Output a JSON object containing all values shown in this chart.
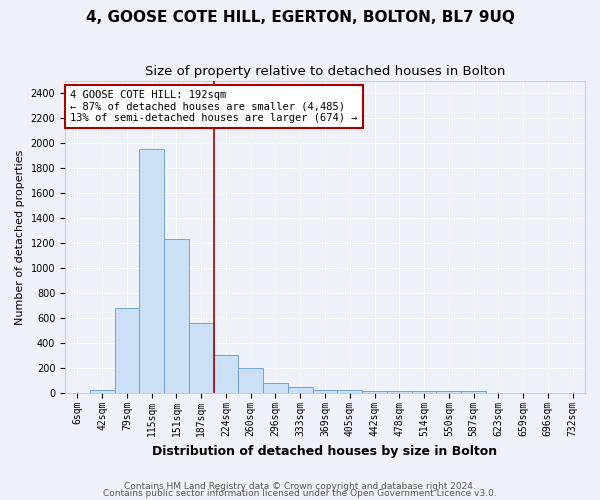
{
  "title": "4, GOOSE COTE HILL, EGERTON, BOLTON, BL7 9UQ",
  "subtitle": "Size of property relative to detached houses in Bolton",
  "xlabel": "Distribution of detached houses by size in Bolton",
  "ylabel": "Number of detached properties",
  "bar_color": "#cce0f5",
  "bar_edge_color": "#6699cc",
  "vline_color": "#aa0000",
  "vline_x": 5.5,
  "annotation_text": "4 GOOSE COTE HILL: 192sqm\n← 87% of detached houses are smaller (4,485)\n13% of semi-detached houses are larger (674) →",
  "annotation_box_color": "white",
  "annotation_box_edge": "#aa0000",
  "footer1": "Contains HM Land Registry data © Crown copyright and database right 2024.",
  "footer2": "Contains public sector information licensed under the Open Government Licence v3.0.",
  "categories": [
    "6sqm",
    "42sqm",
    "79sqm",
    "115sqm",
    "151sqm",
    "187sqm",
    "224sqm",
    "260sqm",
    "296sqm",
    "333sqm",
    "369sqm",
    "405sqm",
    "442sqm",
    "478sqm",
    "514sqm",
    "550sqm",
    "587sqm",
    "623sqm",
    "659sqm",
    "696sqm",
    "732sqm"
  ],
  "values": [
    5,
    25,
    680,
    1950,
    1230,
    560,
    310,
    200,
    85,
    50,
    25,
    25,
    18,
    18,
    18,
    18,
    18,
    0,
    0,
    0,
    5
  ],
  "ylim": [
    0,
    2500
  ],
  "yticks": [
    0,
    200,
    400,
    600,
    800,
    1000,
    1200,
    1400,
    1600,
    1800,
    2000,
    2200,
    2400
  ],
  "background_color": "#eef2f8",
  "plot_bg_color": "#eef2f8",
  "grid_color": "#ffffff",
  "title_fontsize": 11,
  "subtitle_fontsize": 9.5,
  "xlabel_fontsize": 9,
  "ylabel_fontsize": 8,
  "tick_fontsize": 7,
  "footer_fontsize": 6.5
}
